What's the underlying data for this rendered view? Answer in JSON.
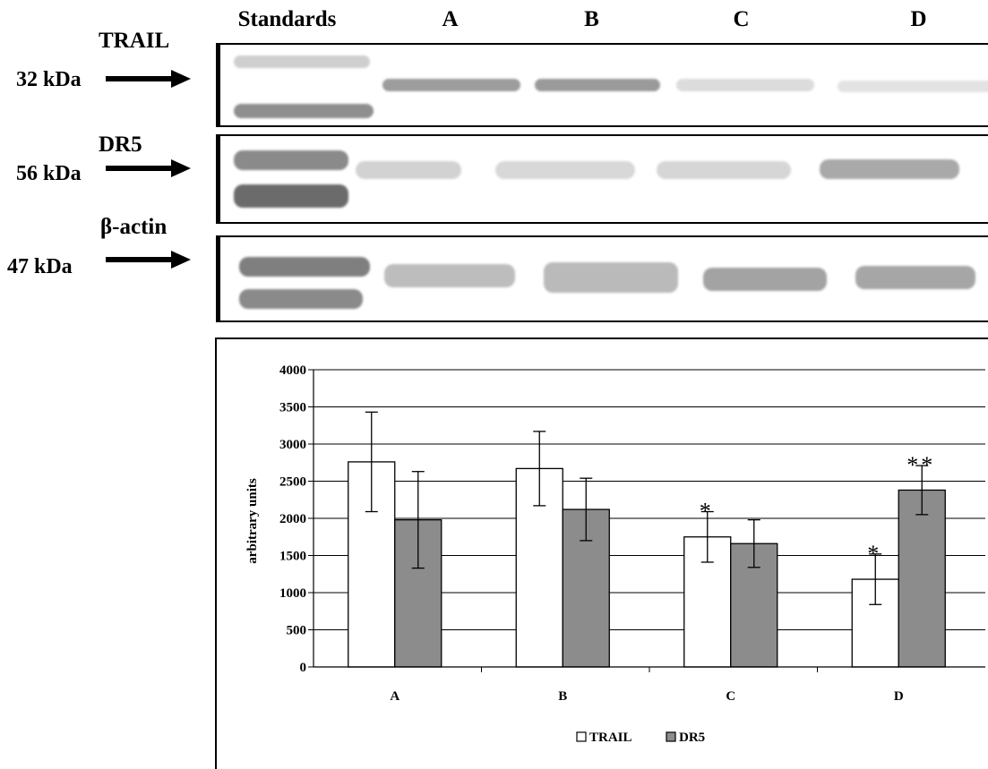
{
  "lanes": [
    "Standards",
    "A",
    "B",
    "C",
    "D"
  ],
  "blots": [
    {
      "protein": "TRAIL",
      "mw": "32 kDa"
    },
    {
      "protein": "DR5",
      "mw": "56 kDa"
    },
    {
      "protein": "β-actin",
      "mw": "47 kDa"
    }
  ],
  "chart_data": {
    "type": "bar",
    "categories": [
      "A",
      "B",
      "C",
      "D"
    ],
    "series": [
      {
        "name": "TRAIL",
        "color": "#ffffff",
        "values": [
          2760,
          2670,
          1750,
          1180
        ],
        "errors": [
          670,
          500,
          340,
          340
        ]
      },
      {
        "name": "DR5",
        "color": "#8c8c8c",
        "values": [
          1980,
          2120,
          1660,
          2380
        ],
        "errors": [
          650,
          420,
          320,
          330
        ]
      }
    ],
    "annotations": [
      {
        "category": "C",
        "series": "TRAIL",
        "text": "*"
      },
      {
        "category": "D",
        "series": "TRAIL",
        "text": "*"
      },
      {
        "category": "D",
        "series": "DR5",
        "text": "**"
      }
    ],
    "ylabel": "arbitrary units",
    "ylim": [
      0,
      4000
    ],
    "yticks": [
      0,
      500,
      1000,
      1500,
      2000,
      2500,
      3000,
      3500,
      4000
    ],
    "grid": true,
    "legend": "bottom-center"
  }
}
